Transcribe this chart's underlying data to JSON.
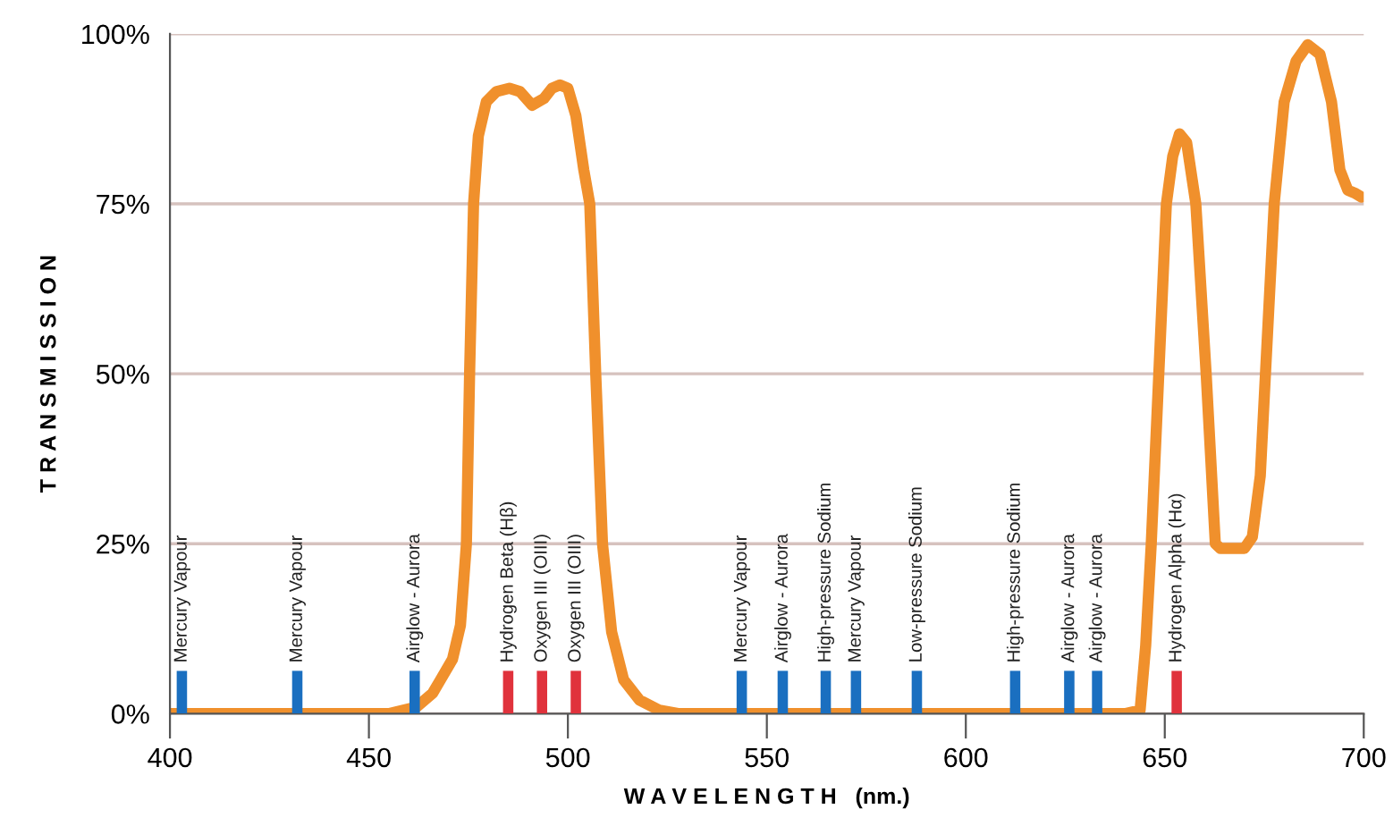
{
  "chart_data": {
    "type": "line",
    "xlabel": "W A V E L E N G T H   (nm.)",
    "ylabel": "T R A N S M I S S I O N",
    "xlim": [
      400,
      700
    ],
    "ylim": [
      0,
      100
    ],
    "xticks": [
      400,
      450,
      500,
      550,
      600,
      650,
      700
    ],
    "yticks": [
      {
        "value": 0,
        "label": "0%"
      },
      {
        "value": 25,
        "label": "25%"
      },
      {
        "value": 50,
        "label": "50%"
      },
      {
        "value": 75,
        "label": "75%"
      },
      {
        "value": 100,
        "label": "100%"
      }
    ],
    "grid": "y",
    "series": [
      {
        "color": "#f0902c",
        "x": [
          400,
          455,
          462,
          466,
          468,
          471,
          473,
          474.5,
          475.3,
          476.3,
          477.5,
          479.5,
          482,
          485.3,
          488,
          491,
          494,
          496,
          498,
          500,
          502,
          504,
          505.5,
          507,
          508.7,
          511,
          514,
          518,
          523,
          528,
          640,
          643.8,
          645.2,
          646.6,
          648.5,
          650.4,
          652,
          653.7,
          655.5,
          657.8,
          660.4,
          662.7,
          664,
          667,
          670,
          672,
          674,
          675.3,
          677.5,
          680,
          683,
          685.9,
          689,
          691.9,
          694,
          696,
          698,
          699.4
        ],
        "values": [
          0,
          0,
          1,
          3,
          5,
          8,
          13,
          25,
          50,
          75,
          85,
          90,
          91.5,
          92,
          91.5,
          89.5,
          90.5,
          92,
          92.5,
          92,
          88,
          80,
          75,
          50,
          25,
          12,
          5,
          2,
          0.5,
          0,
          0,
          0.5,
          10,
          25,
          50,
          75,
          82,
          85.3,
          84,
          75,
          50,
          25,
          24.3,
          24.3,
          24.3,
          26,
          35,
          50,
          75,
          90,
          96,
          98.4,
          97,
          90,
          80,
          77,
          76.5,
          76
        ]
      },
      {
        "type": "bar",
        "x": [
          403,
          432,
          461.5,
          485,
          493.5,
          502,
          543.7,
          554,
          564.8,
          572.4,
          587.7,
          612.4,
          626,
          633,
          653
        ],
        "values": [
          6.3,
          6.3,
          6.3,
          6.3,
          6.3,
          6.3,
          6.3,
          6.3,
          6.3,
          6.3,
          6.3,
          6.3,
          6.3,
          6.3,
          6.3
        ],
        "colors": [
          "#1a6fc0",
          "#1a6fc0",
          "#1a6fc0",
          "#e0323c",
          "#e0323c",
          "#e0323c",
          "#1a6fc0",
          "#1a6fc0",
          "#1a6fc0",
          "#1a6fc0",
          "#1a6fc0",
          "#1a6fc0",
          "#1a6fc0",
          "#1a6fc0",
          "#e0323c"
        ],
        "value_labels": [
          "Mercury Vapour",
          "Mercury Vapour",
          "Airglow - Aurora",
          "Hydrogen Beta (Hβ)",
          "Oxygen III (OIII)",
          "Oxygen III (OIII)",
          "Mercury Vapour",
          "Airglow - Aurora",
          "High-pressure Sodium",
          "Mercury Vapour",
          "Low-pressure Sodium",
          "High-pressure Sodium",
          "Airglow - Aurora",
          "Airglow - Aurora",
          "Hydrogen Alpha (Hα)"
        ]
      }
    ]
  }
}
